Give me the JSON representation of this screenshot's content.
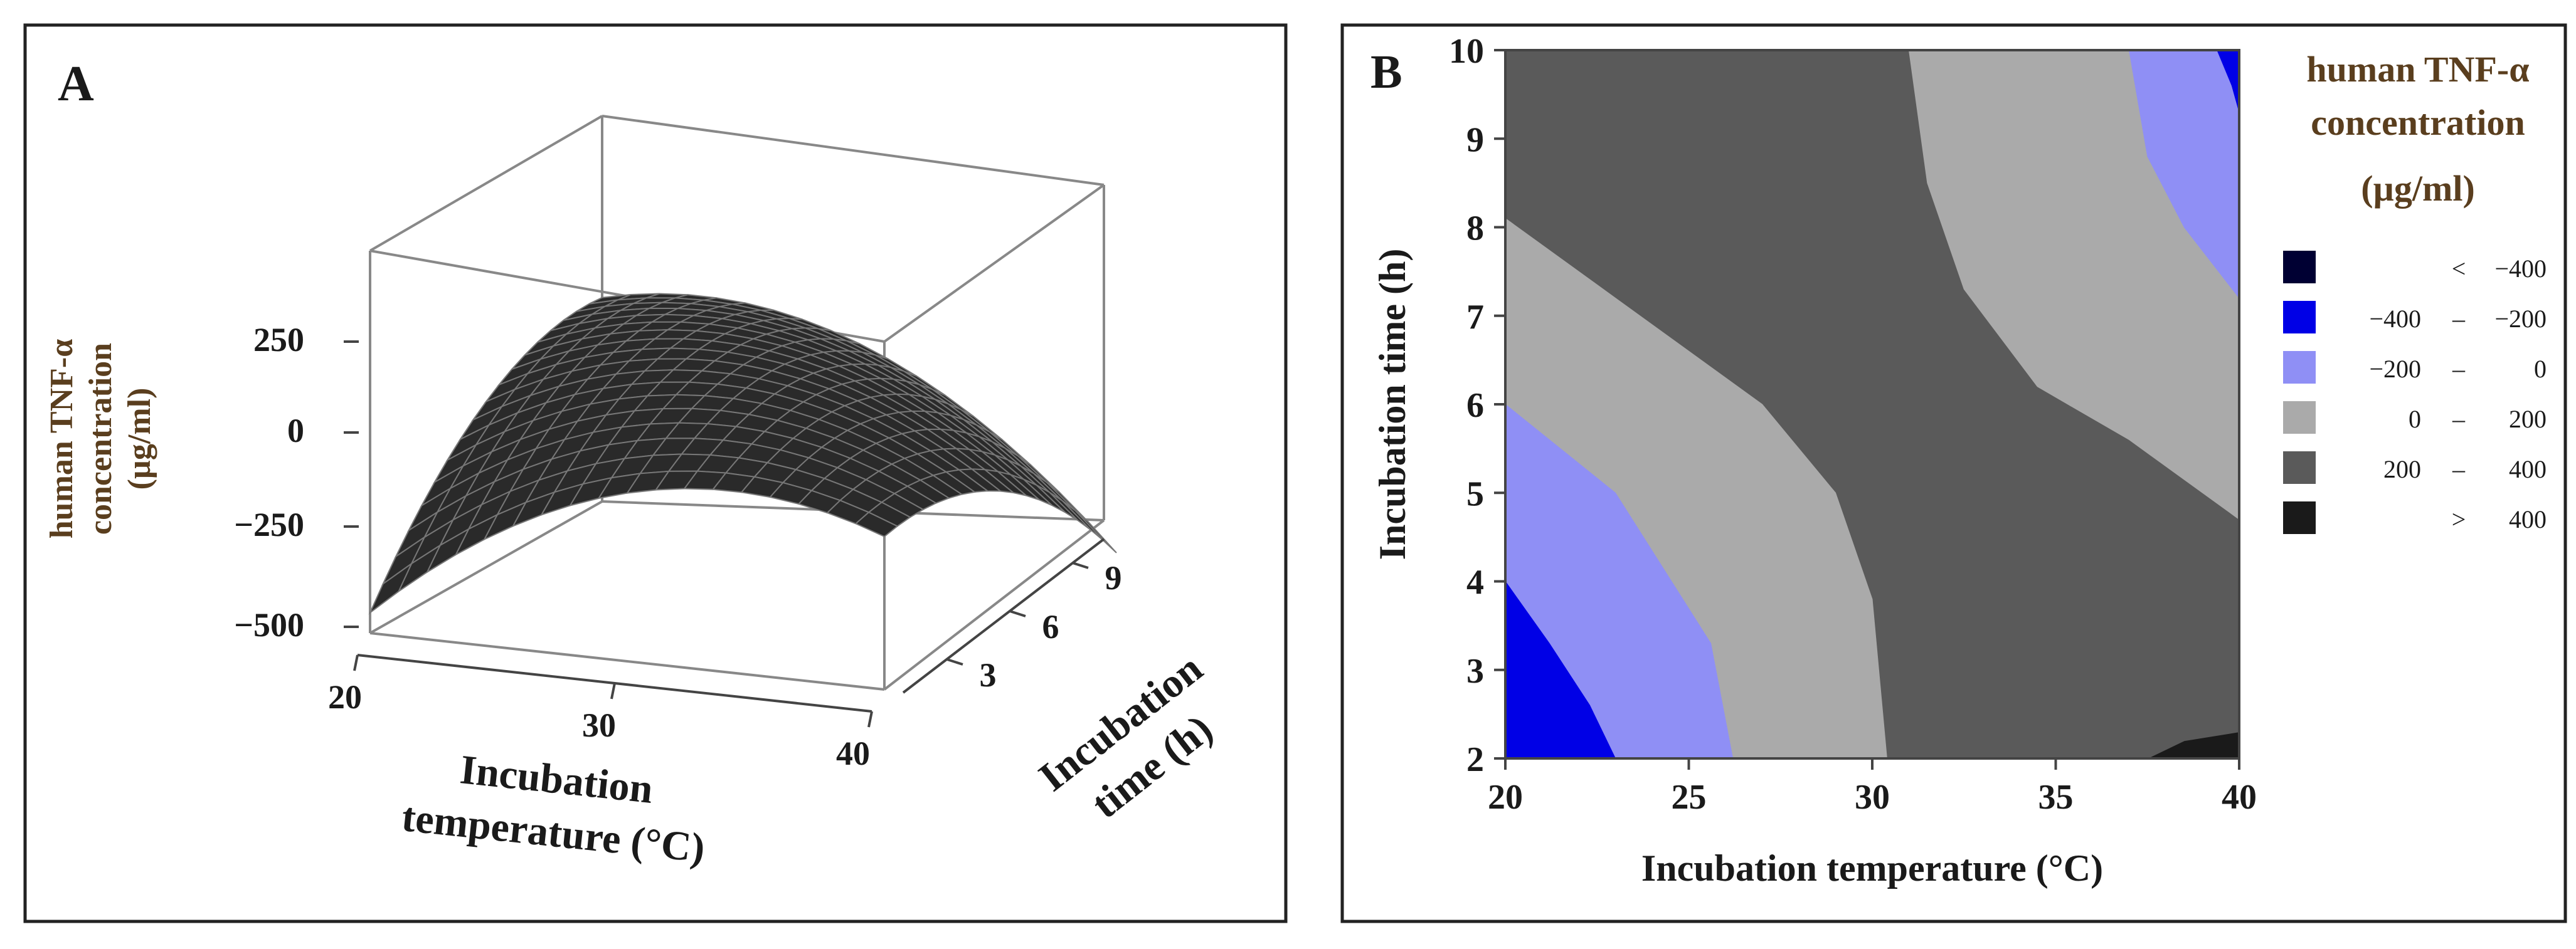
{
  "panel_a": {
    "label": "A",
    "zlabel_line1": "human TNF-α",
    "zlabel_line2": "concentration",
    "zlabel_line3": "(µg/ml)",
    "xlabel_line1": "Incubation",
    "xlabel_line2": "temperature (°C)",
    "ylabel_line1": "Incubation",
    "ylabel_line2": "time (h)",
    "z_ticks": [
      "250",
      "0",
      "−250",
      "−500"
    ],
    "x_ticks": [
      "20",
      "30",
      "40"
    ],
    "y_ticks": [
      "3",
      "6",
      "9"
    ]
  },
  "panel_b": {
    "label": "B",
    "xlabel": "Incubation temperature (°C)",
    "ylabel": "Incubation time (h)",
    "x_ticks": [
      "20",
      "25",
      "30",
      "35",
      "40"
    ],
    "y_ticks": [
      "2",
      "3",
      "4",
      "5",
      "6",
      "7",
      "8",
      "9",
      "10"
    ],
    "legend_title_line1": "human TNF-α",
    "legend_title_line2": "concentration",
    "legend_title_line3": "(µg/ml)",
    "legend": [
      {
        "left": "",
        "sep": "<",
        "right": "−400",
        "color": "#000033"
      },
      {
        "left": "−400",
        "sep": "–",
        "right": "−200",
        "color": "#0000e6"
      },
      {
        "left": "−200",
        "sep": "–",
        "right": "0",
        "color": "#8f8ff5"
      },
      {
        "left": "0",
        "sep": "–",
        "right": "200",
        "color": "#aaaaaa"
      },
      {
        "left": "200",
        "sep": "–",
        "right": "400",
        "color": "#5a5a5a"
      },
      {
        "left": "",
        "sep": ">",
        "right": "400",
        "color": "#1a1a1a"
      }
    ]
  },
  "chart_data": [
    {
      "type": "surface",
      "x_label": "Incubation temperature (°C)",
      "y_label": "Incubation time (h)",
      "z_label": "human TNF-α concentration (µg/ml)",
      "x_range": [
        20,
        40
      ],
      "y_range": [
        2,
        10
      ],
      "z_range": [
        -500,
        250
      ],
      "x_ticks": [
        20,
        30,
        40
      ],
      "y_ticks": [
        3,
        6,
        9
      ],
      "z_ticks": [
        250,
        0,
        -250,
        -500
      ],
      "surface_color": "#2a2a2a",
      "grid_color": "#777777"
    },
    {
      "type": "contour",
      "x_label": "Incubation temperature (°C)",
      "y_label": "Incubation time (h)",
      "x_range": [
        20,
        40
      ],
      "y_range": [
        2,
        10
      ],
      "x_ticks": [
        20,
        25,
        30,
        35,
        40
      ],
      "y_ticks": [
        2,
        3,
        4,
        5,
        6,
        7,
        8,
        9,
        10
      ],
      "levels": [
        {
          "range": "< -400",
          "color": "#000033"
        },
        {
          "range": "-400 – -200",
          "color": "#0000e6"
        },
        {
          "range": "-200 – 0",
          "color": "#8f8ff5"
        },
        {
          "range": "0 – 200",
          "color": "#aaaaaa"
        },
        {
          "range": "200 – 400",
          "color": "#5a5a5a"
        },
        {
          "range": "> 400",
          "color": "#1a1a1a"
        }
      ],
      "regions": [
        {
          "level": "> 400",
          "color": "#1a1a1a",
          "boundary": [
            [
              37.5,
              2
            ],
            [
              38.5,
              2.2
            ],
            [
              40,
              2.3
            ],
            [
              40,
              2
            ]
          ]
        },
        {
          "level": "200 – 400",
          "color": "#5a5a5a",
          "boundary": [
            [
              20,
              8.1
            ],
            [
              23,
              7.2
            ],
            [
              27,
              6
            ],
            [
              29,
              5
            ],
            [
              30,
              3.8
            ],
            [
              30.4,
              2
            ],
            [
              37.5,
              2
            ],
            [
              38.5,
              2.2
            ],
            [
              40,
              2.3
            ],
            [
              40,
              4.7
            ],
            [
              37,
              5.6
            ],
            [
              34.5,
              6.2
            ],
            [
              32.5,
              7.3
            ],
            [
              31.5,
              8.5
            ],
            [
              31,
              10
            ],
            [
              20,
              10
            ]
          ]
        },
        {
          "level": "0 – 200",
          "color": "#aaaaaa",
          "boundary": [
            [
              20,
              6
            ],
            [
              23,
              5
            ],
            [
              25.6,
              3.3
            ],
            [
              26.2,
              2
            ],
            [
              30.4,
              2
            ],
            [
              30,
              3.8
            ],
            [
              29,
              5
            ],
            [
              27,
              6
            ],
            [
              23,
              7.2
            ],
            [
              20,
              8.1
            ]
          ]
        },
        {
          "level": "0 – 200",
          "color": "#aaaaaa",
          "boundary": [
            [
              31,
              10
            ],
            [
              31.5,
              8.5
            ],
            [
              32.5,
              7.3
            ],
            [
              34.5,
              6.2
            ],
            [
              37,
              5.6
            ],
            [
              40,
              4.7
            ],
            [
              40,
              7.2
            ],
            [
              38.5,
              8
            ],
            [
              37.5,
              8.8
            ],
            [
              37,
              10
            ]
          ]
        },
        {
          "level": "-200 – 0",
          "color": "#8f8ff5",
          "boundary": [
            [
              20,
              4
            ],
            [
              21.2,
              3.3
            ],
            [
              22.3,
              2.6
            ],
            [
              23,
              2
            ],
            [
              26.2,
              2
            ],
            [
              25.6,
              3.3
            ],
            [
              23,
              5
            ],
            [
              20,
              6
            ]
          ]
        },
        {
          "level": "-200 – 0",
          "color": "#8f8ff5",
          "boundary": [
            [
              37,
              10
            ],
            [
              37.5,
              8.8
            ],
            [
              38.5,
              8
            ],
            [
              40,
              7.2
            ],
            [
              40,
              10
            ]
          ]
        },
        {
          "level": "-400 – -200",
          "color": "#0000e6",
          "boundary": [
            [
              20,
              2
            ],
            [
              23,
              2
            ],
            [
              22.3,
              2.6
            ],
            [
              21.2,
              3.3
            ],
            [
              20,
              4
            ]
          ]
        },
        {
          "level": "-400 – -200",
          "color": "#0000e6",
          "boundary": [
            [
              39.4,
              10
            ],
            [
              39.8,
              9.6
            ],
            [
              40,
              9.3
            ],
            [
              40,
              10
            ]
          ]
        }
      ]
    }
  ]
}
